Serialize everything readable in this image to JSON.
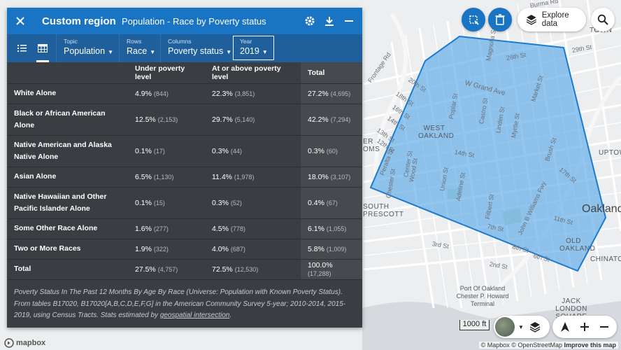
{
  "panel": {
    "title": "Custom region",
    "subtitle": "Population - Race by Poverty status",
    "selectors": {
      "topic": {
        "label": "Topic",
        "value": "Population"
      },
      "rows": {
        "label": "Rows",
        "value": "Race"
      },
      "columns": {
        "label": "Columns",
        "value": "Poverty status"
      },
      "year": {
        "label": "Year",
        "value": "2019"
      }
    }
  },
  "table": {
    "headers": [
      "",
      "Under poverty level",
      "At or above poverty level",
      "Total"
    ],
    "rows": [
      {
        "label": "White Alone",
        "under": "4.9%",
        "under_n": "(844)",
        "above": "22.3%",
        "above_n": "(3,851)",
        "total": "27.2%",
        "total_n": "(4,695)"
      },
      {
        "label": "Black or African American Alone",
        "under": "12.5%",
        "under_n": "(2,153)",
        "above": "29.7%",
        "above_n": "(5,140)",
        "total": "42.2%",
        "total_n": "(7,294)"
      },
      {
        "label": "Native American and Alaska Native Alone",
        "under": "0.1%",
        "under_n": "(17)",
        "above": "0.3%",
        "above_n": "(44)",
        "total": "0.3%",
        "total_n": "(60)"
      },
      {
        "label": "Asian Alone",
        "under": "6.5%",
        "under_n": "(1,130)",
        "above": "11.4%",
        "above_n": "(1,978)",
        "total": "18.0%",
        "total_n": "(3,107)"
      },
      {
        "label": "Native Hawaiian and Other Pacific Islander Alone",
        "under": "0.1%",
        "under_n": "(15)",
        "above": "0.3%",
        "above_n": "(52)",
        "total": "0.4%",
        "total_n": "(67)"
      },
      {
        "label": "Some Other Race Alone",
        "under": "1.6%",
        "under_n": "(277)",
        "above": "4.5%",
        "above_n": "(778)",
        "total": "6.1%",
        "total_n": "(1,055)"
      },
      {
        "label": "Two or More Races",
        "under": "1.9%",
        "under_n": "(322)",
        "above": "4.0%",
        "above_n": "(687)",
        "total": "5.8%",
        "total_n": "(1,009)"
      },
      {
        "label": "Total",
        "under": "27.5%",
        "under_n": "(4,757)",
        "above": "72.5%",
        "above_n": "(12,530)",
        "total": "100.0%",
        "total_n": "(17,288)"
      }
    ],
    "footnote_text": "Poverty Status In The Past 12 Months By Age By Race (Universe: Population with Known Poverty Status). From tables B17020, B17020[A,B,C,D,E,F,G] in the American Community Survey 5-year; 2010-2014, 2015-2019, using Census Tracts. Stats estimated by",
    "footnote_link": "geospatial intersection",
    "footnote_end": "."
  },
  "map": {
    "explore_label": "Explore data",
    "scale_label": "1000 ft",
    "attribution": {
      "mapbox": "© Mapbox",
      "osm": "© OpenStreetMap",
      "improve": "Improve this map"
    },
    "logo_text": "mapbox",
    "region_color": "#5aa9e6",
    "street_labels": [
      "Burma Rd",
      "26th St",
      "29th St",
      "Frontage Rd",
      "20th St",
      "18th St",
      "16th St",
      "14th St",
      "13th St",
      "12th St",
      "W Grand Ave",
      "Market St",
      "Poplar St",
      "Castro St",
      "Linden St",
      "Myrtle St",
      "14th St",
      "Brush St",
      "17th St",
      "Peralta St",
      "Center St",
      "Union St",
      "Adeline St",
      "Filbert St",
      "John B Williams Fwy",
      "7th St",
      "Chester St",
      "Wood St",
      "11th St",
      "8th St",
      "6th St",
      "3rd St",
      "2nd St",
      "Magnolia St"
    ],
    "area_labels": [
      "WEST OAKLAND",
      "SOUTH PRESCOTT",
      "OLD OAKLAND",
      "JACK LONDON SQUARE",
      "UPTOWN",
      "CHINATOWN",
      "TOWN",
      "ER OMS"
    ],
    "city_label": "Oakland",
    "poi_labels": [
      "Port Of Oakland Chester P. Howard Terminal"
    ]
  }
}
